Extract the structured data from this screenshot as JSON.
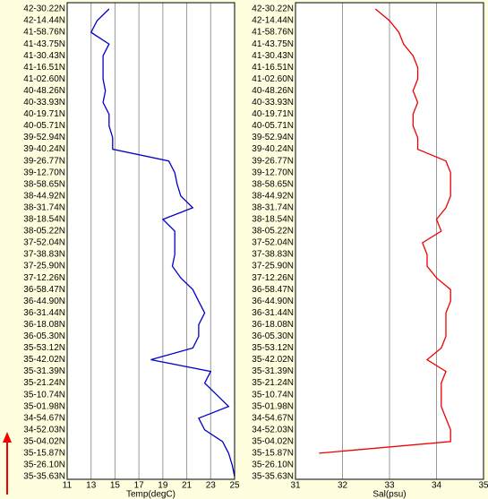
{
  "chart_data": [
    {
      "type": "line",
      "xlabel": "Temp(degC)",
      "categories": [
        "42-30.22N",
        "42-14.44N",
        "41-58.76N",
        "41-43.75N",
        "41-30.43N",
        "41-16.51N",
        "41-02.60N",
        "40-48.26N",
        "40-33.93N",
        "40-19.71N",
        "40-05.71N",
        "39-52.94N",
        "39-40.24N",
        "39-26.77N",
        "39-12.70N",
        "38-58.65N",
        "38-44.92N",
        "38-31.74N",
        "38-18.54N",
        "38-05.22N",
        "37-52.04N",
        "37-38.83N",
        "37-25.90N",
        "37-12.26N",
        "36-58.47N",
        "36-44.90N",
        "36-31.44N",
        "36-18.08N",
        "36-05.30N",
        "35-53.12N",
        "35-42.02N",
        "35-31.39N",
        "35-21.24N",
        "35-10.74N",
        "35-01.98N",
        "34-54.67N",
        "34-52.03N",
        "35-04.02N",
        "35-15.87N",
        "35-26.10N",
        "35-35.63N"
      ],
      "values": [
        14.5,
        13.5,
        13,
        14.5,
        14,
        14,
        14,
        14.2,
        14,
        14.5,
        14.5,
        14.8,
        14.8,
        19.5,
        20,
        20.2,
        20.5,
        21.5,
        19,
        20,
        20,
        20,
        19.8,
        20.5,
        21.5,
        22,
        22.5,
        22,
        22,
        21.5,
        18,
        23,
        22.5,
        23.5,
        24.5,
        22,
        22.5,
        24,
        24.5,
        24.8,
        25
      ],
      "color": "#0000cc",
      "xlim": [
        11,
        25
      ],
      "xticks": [
        11,
        13,
        15,
        17,
        19,
        21,
        23,
        25
      ],
      "grid": true
    },
    {
      "type": "line",
      "xlabel": "Sal(psu)",
      "categories": [
        "42-30.22N",
        "42-14.44N",
        "41-58.76N",
        "41-43.75N",
        "41-30.43N",
        "41-16.51N",
        "41-02.60N",
        "40-48.26N",
        "40-33.93N",
        "40-19.71N",
        "40-05.71N",
        "39-52.94N",
        "39-40.24N",
        "39-26.77N",
        "39-12.70N",
        "38-58.65N",
        "38-44.92N",
        "38-31.74N",
        "38-18.54N",
        "38-05.22N",
        "37-52.04N",
        "37-38.83N",
        "37-25.90N",
        "37-12.26N",
        "36-58.47N",
        "36-44.90N",
        "36-31.44N",
        "36-18.08N",
        "36-05.30N",
        "35-53.12N",
        "35-42.02N",
        "35-31.39N",
        "35-21.24N",
        "35-10.74N",
        "35-01.98N",
        "34-54.67N",
        "34-52.03N",
        "35-04.02N",
        "35-15.87N",
        "35-26.10N",
        "35-35.63N"
      ],
      "values": [
        32.7,
        33,
        33.2,
        33.3,
        33.5,
        33.6,
        33.6,
        33.5,
        33.6,
        33.5,
        33.5,
        33.6,
        33.6,
        34.2,
        34.3,
        34.3,
        34.3,
        34.2,
        34,
        34.1,
        33.7,
        33.8,
        33.8,
        34,
        34.3,
        34.3,
        34.2,
        34.2,
        34.2,
        34.1,
        33.8,
        34.2,
        34.1,
        34.1,
        34.1,
        34.2,
        34.3,
        34.3,
        31.5,
        null,
        null
      ],
      "color": "#ee0000",
      "xlim": [
        31,
        35
      ],
      "xticks": [
        31,
        32,
        33,
        34,
        35
      ],
      "grid": true
    }
  ]
}
